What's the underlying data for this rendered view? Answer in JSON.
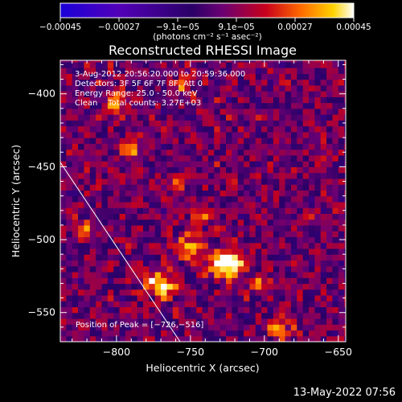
{
  "chart_data": {
    "type": "heatmap",
    "title": "Reconstructed RHESSI Image",
    "xlabel": "Heliocentric X (arcsec)",
    "ylabel": "Heliocentric Y (arcsec)",
    "xlim": [
      -838,
      -645
    ],
    "ylim": [
      -570,
      -377
    ],
    "x_ticks": [
      -800,
      -750,
      -700,
      -650
    ],
    "x_tick_labels": [
      "−800",
      "−750",
      "−700",
      "−650"
    ],
    "y_ticks": [
      -400,
      -450,
      -500,
      -550
    ],
    "y_tick_labels": [
      "−400",
      "−450",
      "−500",
      "−550"
    ],
    "colorbar": {
      "min": -0.00045,
      "max": 0.00045,
      "ticks": [
        "−0.00045",
        "−0.00027",
        "−9.1e−05",
        "9.1e−05",
        "0.00027",
        "0.00045"
      ],
      "unit_label": "(photons cm⁻² s⁻¹ asec⁻²)",
      "colors": [
        "#1a00d8",
        "#5200b8",
        "#2a0066",
        "#6a0074",
        "#c8001c",
        "#ff6a00",
        "#ffd200",
        "#ffffff"
      ]
    },
    "annotations": [
      "3-Aug-2012 20:56:20.000 to 20:59:36.000",
      "Detectors: 3F 5F 6F 7F 8F, Att 0",
      "Energy Range: 25.0 - 50.0 keV",
      "Clean    Total counts: 3.27E+03"
    ],
    "peak_label": "Position of Peak = [−726,−516]",
    "peak": [
      -726,
      -516
    ],
    "limb_line": [
      [
        -838,
        -447
      ],
      [
        -757,
        -570
      ]
    ],
    "sources": [
      {
        "x": -726,
        "y": -516,
        "amp": 1.0,
        "sx": 8,
        "sy": 7
      },
      {
        "x": -770,
        "y": -530,
        "amp": 0.85,
        "sx": 7,
        "sy": 6
      },
      {
        "x": -750,
        "y": -505,
        "amp": 0.6,
        "sx": 7,
        "sy": 6
      },
      {
        "x": -790,
        "y": -437,
        "amp": 0.55,
        "sx": 6,
        "sy": 5
      },
      {
        "x": -800,
        "y": -405,
        "amp": 0.5,
        "sx": 5,
        "sy": 6
      },
      {
        "x": -745,
        "y": -480,
        "amp": 0.4,
        "sx": 6,
        "sy": 6
      },
      {
        "x": -755,
        "y": -395,
        "amp": 0.4,
        "sx": 5,
        "sy": 5
      },
      {
        "x": -690,
        "y": -560,
        "amp": 0.45,
        "sx": 6,
        "sy": 6
      },
      {
        "x": -700,
        "y": -530,
        "amp": 0.35,
        "sx": 6,
        "sy": 5
      },
      {
        "x": -820,
        "y": -495,
        "amp": 0.35,
        "sx": 5,
        "sy": 6
      },
      {
        "x": -760,
        "y": -462,
        "amp": 0.3,
        "sx": 5,
        "sy": 5
      },
      {
        "x": -660,
        "y": -440,
        "amp": 0.3,
        "sx": 5,
        "sy": 5
      }
    ]
  },
  "footer": {
    "timestamp": "13-May-2022 07:56"
  }
}
